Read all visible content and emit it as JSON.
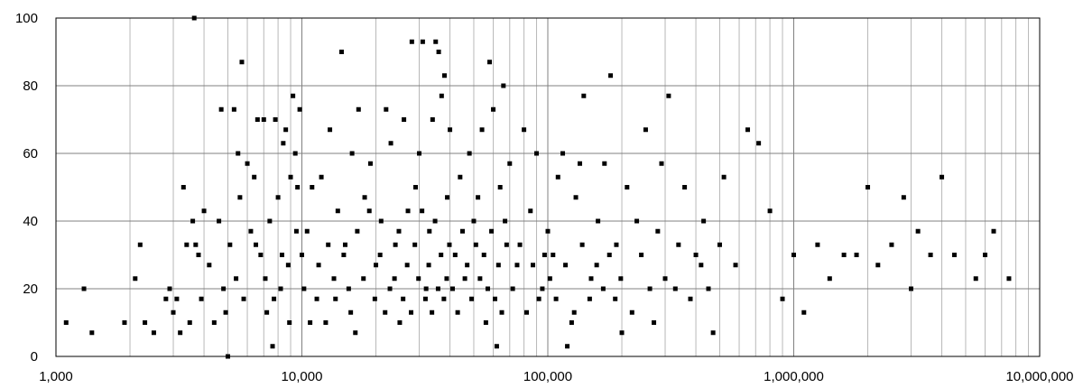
{
  "chart_data": {
    "type": "scatter",
    "title": "",
    "xlabel": "",
    "ylabel": "",
    "x_scale": "log",
    "xlim": [
      1000,
      10000000
    ],
    "ylim": [
      0,
      100
    ],
    "grid": true,
    "legend": "none",
    "marker_color": "#000000",
    "x_tick_labels": [
      "1,000",
      "10,000",
      "100,000",
      "1,000,000",
      "10,000,000"
    ],
    "y_tick_labels": [
      "0",
      "20",
      "40",
      "60",
      "80",
      "100"
    ],
    "x_ticks": [
      1000,
      10000,
      100000,
      1000000,
      10000000
    ],
    "y_ticks": [
      0,
      20,
      40,
      60,
      80,
      100
    ],
    "points": [
      [
        1100,
        10
      ],
      [
        1300,
        20
      ],
      [
        1400,
        7
      ],
      [
        1900,
        10
      ],
      [
        2100,
        23
      ],
      [
        2200,
        33
      ],
      [
        2300,
        10
      ],
      [
        2500,
        7
      ],
      [
        2800,
        17
      ],
      [
        2900,
        20
      ],
      [
        3000,
        13
      ],
      [
        3100,
        17
      ],
      [
        3200,
        7
      ],
      [
        3300,
        50
      ],
      [
        3400,
        33
      ],
      [
        3500,
        10
      ],
      [
        3600,
        40
      ],
      [
        3650,
        100
      ],
      [
        3700,
        33
      ],
      [
        3800,
        30
      ],
      [
        3900,
        17
      ],
      [
        4000,
        43
      ],
      [
        4200,
        27
      ],
      [
        4400,
        10
      ],
      [
        4600,
        40
      ],
      [
        4700,
        73
      ],
      [
        4800,
        20
      ],
      [
        4900,
        13
      ],
      [
        5000,
        0
      ],
      [
        5100,
        33
      ],
      [
        5300,
        73
      ],
      [
        5400,
        23
      ],
      [
        5500,
        60
      ],
      [
        5600,
        47
      ],
      [
        5700,
        87
      ],
      [
        5800,
        17
      ],
      [
        6000,
        57
      ],
      [
        6200,
        37
      ],
      [
        6400,
        53
      ],
      [
        6600,
        70
      ],
      [
        6800,
        30
      ],
      [
        7000,
        70
      ],
      [
        7200,
        13
      ],
      [
        7400,
        40
      ],
      [
        7600,
        3
      ],
      [
        7800,
        70
      ],
      [
        8000,
        47
      ],
      [
        8200,
        20
      ],
      [
        8400,
        63
      ],
      [
        8600,
        67
      ],
      [
        8800,
        27
      ],
      [
        9000,
        53
      ],
      [
        9200,
        77
      ],
      [
        9400,
        60
      ],
      [
        9600,
        50
      ],
      [
        9800,
        73
      ],
      [
        10000,
        30
      ],
      [
        10500,
        37
      ],
      [
        11000,
        50
      ],
      [
        11500,
        17
      ],
      [
        12000,
        53
      ],
      [
        12500,
        10
      ],
      [
        13000,
        67
      ],
      [
        13500,
        23
      ],
      [
        14000,
        43
      ],
      [
        14500,
        90
      ],
      [
        15000,
        33
      ],
      [
        15500,
        20
      ],
      [
        16000,
        60
      ],
      [
        16500,
        7
      ],
      [
        17000,
        73
      ],
      [
        18000,
        47
      ],
      [
        19000,
        57
      ],
      [
        20000,
        27
      ],
      [
        21000,
        40
      ],
      [
        22000,
        73
      ],
      [
        23000,
        63
      ],
      [
        24000,
        33
      ],
      [
        25000,
        10
      ],
      [
        26000,
        70
      ],
      [
        27000,
        43
      ],
      [
        28000,
        93
      ],
      [
        29000,
        50
      ],
      [
        30000,
        60
      ],
      [
        31000,
        93
      ],
      [
        32000,
        20
      ],
      [
        33000,
        37
      ],
      [
        34000,
        70
      ],
      [
        35000,
        93
      ],
      [
        36000,
        90
      ],
      [
        37000,
        77
      ],
      [
        38000,
        83
      ],
      [
        39000,
        47
      ],
      [
        40000,
        67
      ],
      [
        42000,
        30
      ],
      [
        44000,
        53
      ],
      [
        46000,
        23
      ],
      [
        48000,
        60
      ],
      [
        50000,
        40
      ],
      [
        52000,
        47
      ],
      [
        54000,
        67
      ],
      [
        56000,
        10
      ],
      [
        58000,
        87
      ],
      [
        60000,
        73
      ],
      [
        62000,
        3
      ],
      [
        64000,
        50
      ],
      [
        66000,
        80
      ],
      [
        68000,
        33
      ],
      [
        70000,
        57
      ],
      [
        75000,
        27
      ],
      [
        80000,
        67
      ],
      [
        85000,
        43
      ],
      [
        90000,
        60
      ],
      [
        95000,
        20
      ],
      [
        100000,
        37
      ],
      [
        105000,
        30
      ],
      [
        110000,
        53
      ],
      [
        115000,
        60
      ],
      [
        120000,
        3
      ],
      [
        125000,
        10
      ],
      [
        130000,
        47
      ],
      [
        135000,
        57
      ],
      [
        140000,
        77
      ],
      [
        150000,
        23
      ],
      [
        160000,
        40
      ],
      [
        170000,
        57
      ],
      [
        180000,
        83
      ],
      [
        190000,
        33
      ],
      [
        200000,
        7
      ],
      [
        210000,
        50
      ],
      [
        230000,
        40
      ],
      [
        250000,
        67
      ],
      [
        270000,
        10
      ],
      [
        290000,
        57
      ],
      [
        310000,
        77
      ],
      [
        330000,
        20
      ],
      [
        360000,
        50
      ],
      [
        400000,
        30
      ],
      [
        430000,
        40
      ],
      [
        470000,
        7
      ],
      [
        520000,
        53
      ],
      [
        580000,
        27
      ],
      [
        650000,
        67
      ],
      [
        720000,
        63
      ],
      [
        800000,
        43
      ],
      [
        900000,
        17
      ],
      [
        1000000,
        30
      ],
      [
        1100000,
        13
      ],
      [
        1250000,
        33
      ],
      [
        1400000,
        23
      ],
      [
        1600000,
        30
      ],
      [
        1800000,
        30
      ],
      [
        2000000,
        50
      ],
      [
        2200000,
        27
      ],
      [
        2500000,
        33
      ],
      [
        2800000,
        47
      ],
      [
        3000000,
        20
      ],
      [
        3200000,
        37
      ],
      [
        3600000,
        30
      ],
      [
        4000000,
        53
      ],
      [
        4500000,
        30
      ],
      [
        5500000,
        23
      ],
      [
        6000000,
        30
      ],
      [
        6500000,
        37
      ],
      [
        7500000,
        23
      ],
      [
        6500,
        33
      ],
      [
        7100,
        23
      ],
      [
        7700,
        17
      ],
      [
        8300,
        30
      ],
      [
        8900,
        10
      ],
      [
        9500,
        37
      ],
      [
        10200,
        20
      ],
      [
        10800,
        10
      ],
      [
        11700,
        27
      ],
      [
        12800,
        33
      ],
      [
        13700,
        17
      ],
      [
        14800,
        30
      ],
      [
        15800,
        13
      ],
      [
        16800,
        37
      ],
      [
        17800,
        23
      ],
      [
        18800,
        43
      ],
      [
        19800,
        17
      ],
      [
        20800,
        30
      ],
      [
        21800,
        13
      ],
      [
        22800,
        20
      ],
      [
        23800,
        23
      ],
      [
        24800,
        37
      ],
      [
        25800,
        17
      ],
      [
        26800,
        27
      ],
      [
        27800,
        13
      ],
      [
        28800,
        33
      ],
      [
        29800,
        23
      ],
      [
        30800,
        43
      ],
      [
        31800,
        17
      ],
      [
        32800,
        27
      ],
      [
        33800,
        13
      ],
      [
        34800,
        40
      ],
      [
        35800,
        20
      ],
      [
        36800,
        30
      ],
      [
        37800,
        17
      ],
      [
        38800,
        23
      ],
      [
        39800,
        33
      ],
      [
        41000,
        20
      ],
      [
        43000,
        13
      ],
      [
        45000,
        37
      ],
      [
        47000,
        27
      ],
      [
        49000,
        17
      ],
      [
        51000,
        33
      ],
      [
        53000,
        23
      ],
      [
        55000,
        30
      ],
      [
        57000,
        20
      ],
      [
        59000,
        37
      ],
      [
        61000,
        17
      ],
      [
        63000,
        27
      ],
      [
        65000,
        13
      ],
      [
        67000,
        40
      ],
      [
        72000,
        20
      ],
      [
        77000,
        33
      ],
      [
        82000,
        13
      ],
      [
        87000,
        27
      ],
      [
        92000,
        17
      ],
      [
        97000,
        30
      ],
      [
        102000,
        23
      ],
      [
        108000,
        17
      ],
      [
        118000,
        27
      ],
      [
        128000,
        13
      ],
      [
        138000,
        33
      ],
      [
        148000,
        17
      ],
      [
        158000,
        27
      ],
      [
        168000,
        20
      ],
      [
        178000,
        30
      ],
      [
        188000,
        17
      ],
      [
        198000,
        23
      ],
      [
        220000,
        13
      ],
      [
        240000,
        30
      ],
      [
        260000,
        20
      ],
      [
        280000,
        37
      ],
      [
        300000,
        23
      ],
      [
        340000,
        33
      ],
      [
        380000,
        17
      ],
      [
        420000,
        27
      ],
      [
        450000,
        20
      ],
      [
        500000,
        33
      ]
    ]
  }
}
